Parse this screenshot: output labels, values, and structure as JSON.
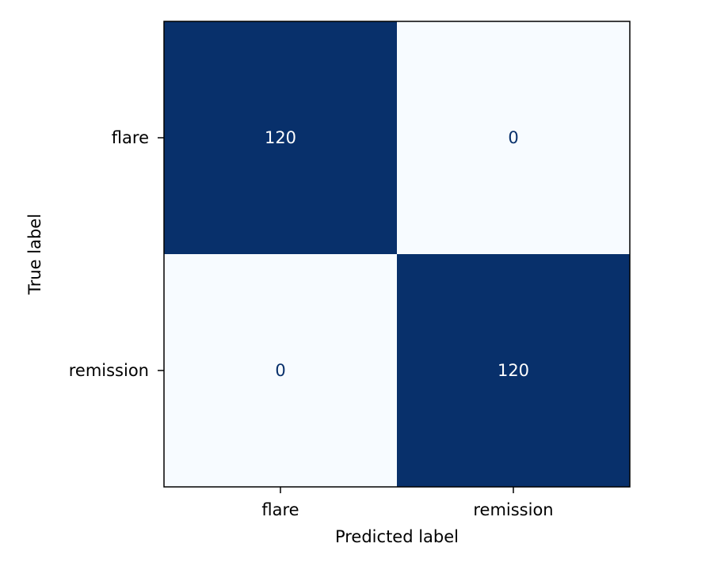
{
  "chart_data": {
    "type": "heatmap",
    "title": "",
    "xlabel": "Predicted label",
    "ylabel": "True label",
    "x_categories": [
      "flare",
      "remission"
    ],
    "y_categories": [
      "flare",
      "remission"
    ],
    "matrix": [
      [
        120,
        0
      ],
      [
        0,
        120
      ]
    ],
    "value_range": [
      0,
      120
    ],
    "colormap": "Blues",
    "colors": {
      "low": "#f7fbff",
      "high": "#08306b",
      "text_on_dark": "#ffffff",
      "text_on_light": "#08306b",
      "frame": "#000000"
    },
    "colorbar": false,
    "grid": false
  }
}
